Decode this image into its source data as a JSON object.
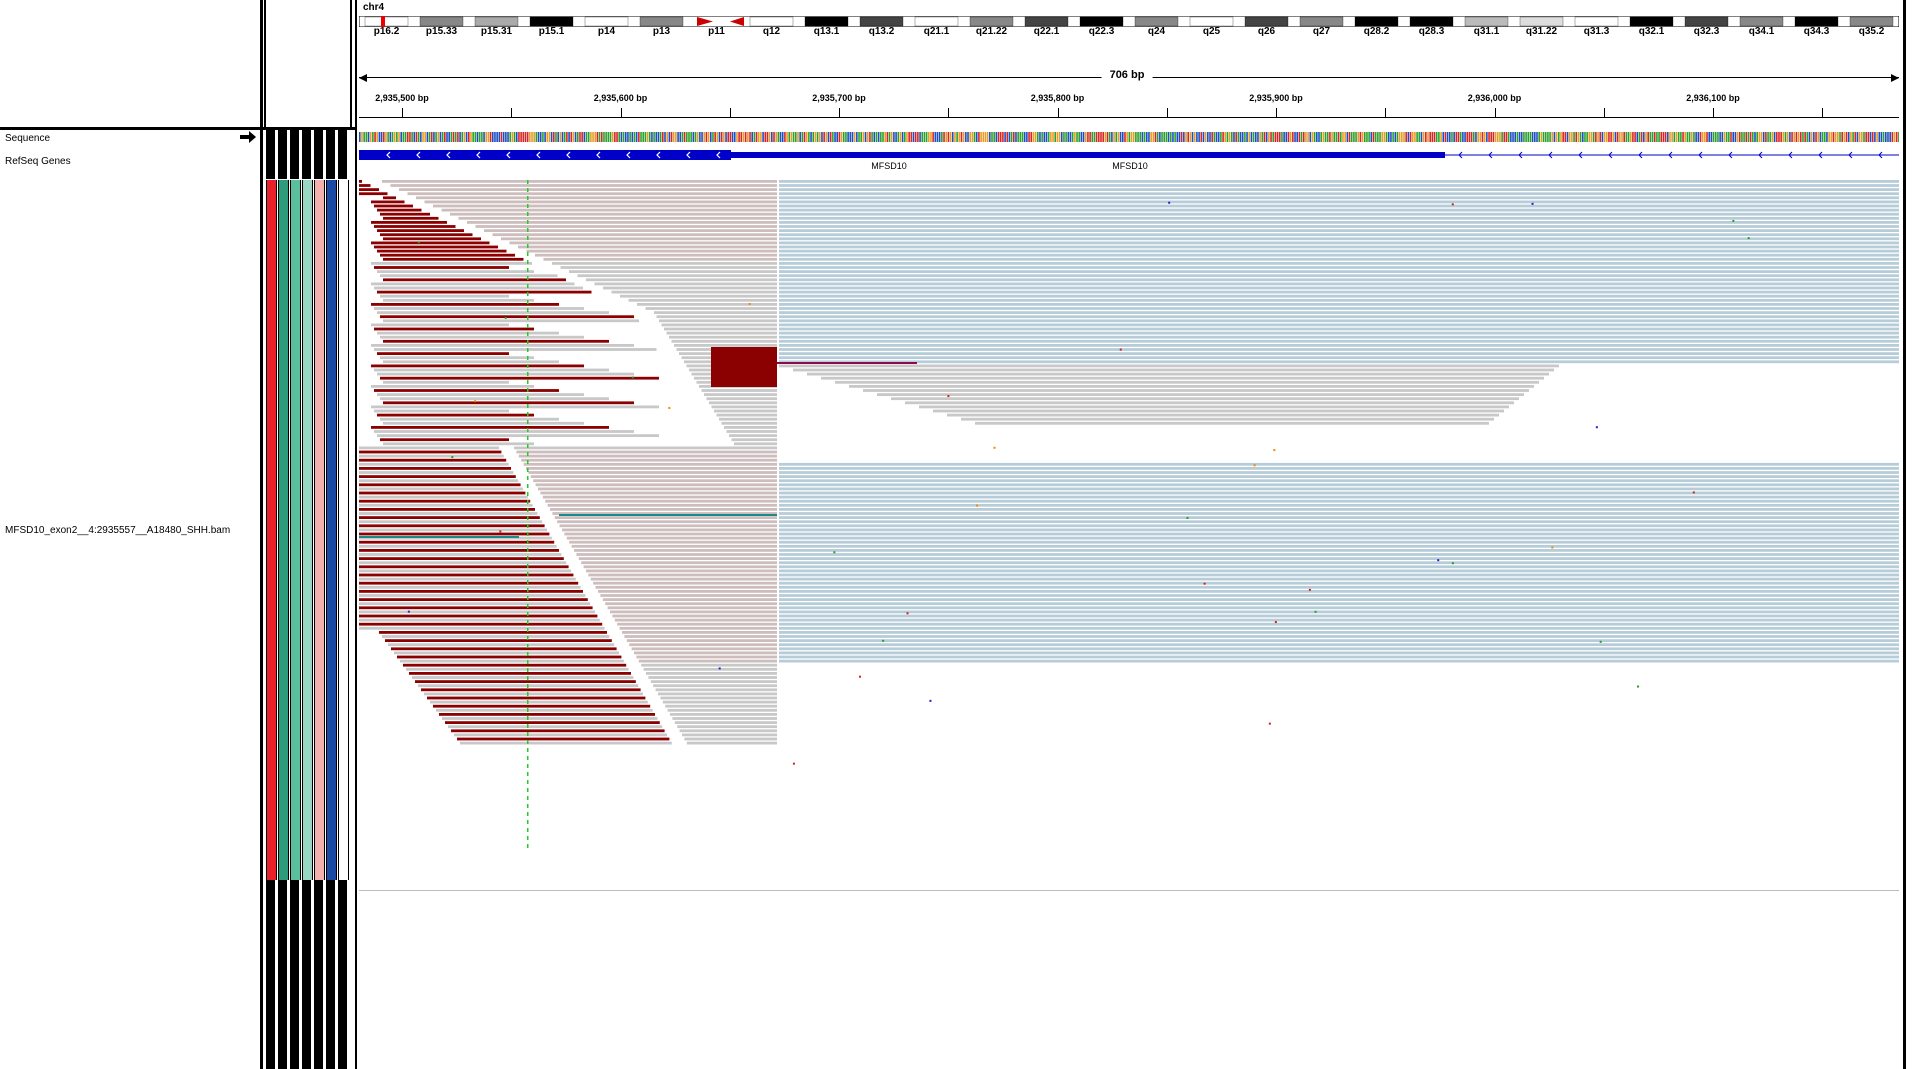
{
  "locus": {
    "chromosome": "chr4",
    "span_label": "706 bp",
    "cytobands": [
      "p16.2",
      "p15.33",
      "p15.31",
      "p15.1",
      "p14",
      "p13",
      "p11",
      "q12",
      "q13.1",
      "q13.2",
      "q21.1",
      "q21.22",
      "q22.1",
      "q22.3",
      "q24",
      "q25",
      "q26",
      "q27",
      "q28.2",
      "q28.3",
      "q31.1",
      "q31.22",
      "q31.3",
      "q32.1",
      "q32.3",
      "q34.1",
      "q34.3",
      "q35.2"
    ]
  },
  "ruler": {
    "ticks": [
      "2,935,500 bp",
      "2,935,600 bp",
      "2,935,700 bp",
      "2,935,800 bp",
      "2,935,900 bp",
      "2,936,000 bp",
      "2,936,100 bp"
    ]
  },
  "tracks": {
    "sequence": "Sequence",
    "refseq": "RefSeq Genes",
    "bam": "MFSD10_exon2__4:2935557__A18480_SHH.bam"
  },
  "genes": [
    "MFSD10",
    "MFSD10"
  ],
  "attribute_colors": [
    "#e8212b",
    "#2e9c7a",
    "#5bbf9e",
    "#9ad7c2",
    "#f3b1ad",
    "#1a4aa3",
    "#ffffff"
  ],
  "colors": {
    "softclip": "#8b0000",
    "read": "#c8c8c8",
    "read_pink": "#cdbdbd",
    "read_lowmapq": "#b7ccd9",
    "gene": "#0000c8",
    "green_marker": "#22cc22"
  }
}
